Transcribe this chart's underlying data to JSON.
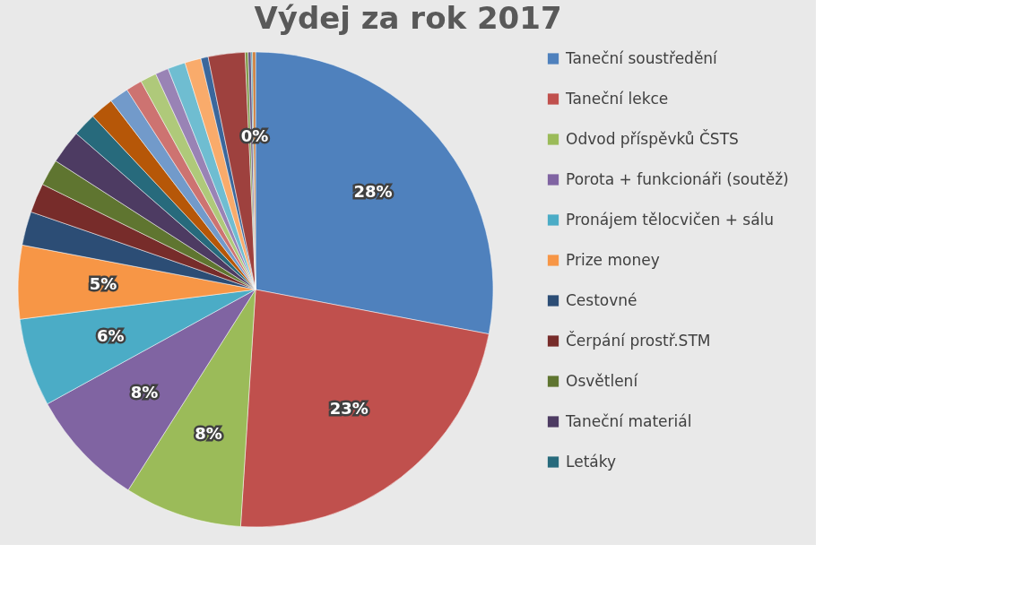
{
  "chart_data": {
    "type": "pie",
    "title": "Výdej za rok 2017",
    "legend": "right",
    "categories": [
      "Taneční soustředění",
      "Taneční lekce",
      "Odvod příspěvků ČSTS",
      "Porota + funkcionáři (soutěž)",
      "Pronájem tělocvičen + sálu",
      "Prize money",
      "Cestovné",
      "Čerpání prostř.STM",
      "Osvětlení",
      "Taneční materiál",
      "Letáky",
      null,
      null,
      null,
      null,
      null,
      null,
      null,
      null,
      null,
      null,
      null,
      null,
      null
    ],
    "values": [
      28,
      23,
      8,
      8,
      6,
      5,
      2.3,
      2,
      1.8,
      2.3,
      1.6,
      1.6,
      1.3,
      1.1,
      1.1,
      0.9,
      1.2,
      1.1,
      0.5,
      2.5,
      0.2,
      0.2,
      0.1,
      0.2
    ],
    "colors": [
      "#4f81bd",
      "#c0504d",
      "#9bbb59",
      "#8064a2",
      "#4bacc6",
      "#f79646",
      "#2c4d75",
      "#772c2a",
      "#5f7530",
      "#4d3b62",
      "#276a7c",
      "#b65708",
      "#729aca",
      "#cd7371",
      "#afc97a",
      "#9983b5",
      "#6fbdd1",
      "#f9ab6b",
      "#3a679c",
      "#9e413e",
      "#7f9a48",
      "#69537e",
      "#358ea6",
      "#cc7b38"
    ],
    "value_labels": [
      "28%",
      "23%",
      "8%",
      "8%",
      "6%",
      "5%",
      null,
      null,
      null,
      null,
      null,
      null,
      null,
      null,
      null,
      null,
      null,
      null,
      null,
      null,
      null,
      null,
      null,
      "0%"
    ]
  }
}
